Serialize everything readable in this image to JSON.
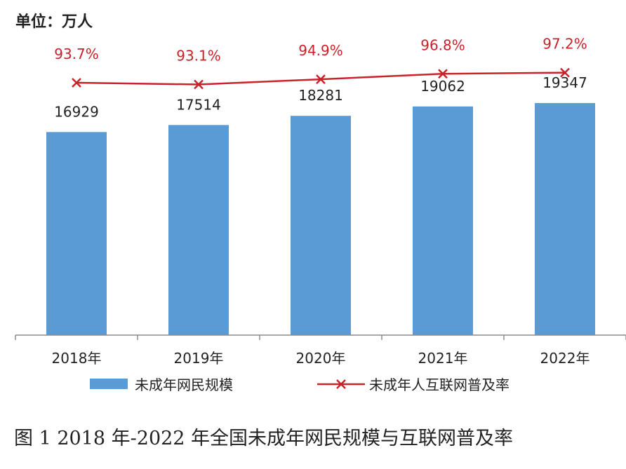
{
  "chart_data": {
    "type": "bar",
    "unit_label": "单位：万人",
    "categories": [
      "2018年",
      "2019年",
      "2020年",
      "2021年",
      "2022年"
    ],
    "series": [
      {
        "name": "未成年网民规模",
        "type": "bar",
        "values": [
          16929,
          17514,
          18281,
          19062,
          19347
        ],
        "value_labels": [
          "16929",
          "17514",
          "18281",
          "19062",
          "19347"
        ]
      },
      {
        "name": "未成年人互联网普及率",
        "type": "line",
        "values": [
          93.7,
          93.1,
          94.9,
          96.8,
          97.2
        ],
        "value_labels": [
          "93.7%",
          "93.1%",
          "94.9%",
          "96.8%",
          "97.2%"
        ]
      }
    ],
    "legend_position": "bottom",
    "grid": false,
    "caption": "图 1 2018 年-2022 年全国未成年网民规模与互联网普及率"
  },
  "colors": {
    "bar": "#5b9bd5",
    "line": "#c8222a",
    "axis": "#8c8c8c"
  }
}
